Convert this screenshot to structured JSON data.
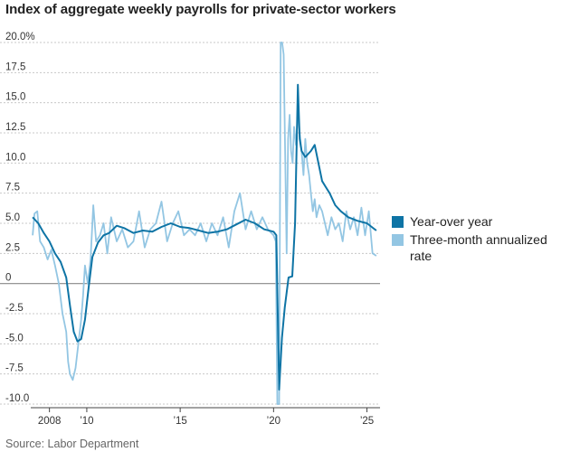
{
  "title": "Index of aggregate weekly payrolls for private-sector workers",
  "source": "Source: Labor Department",
  "colors": {
    "yoy": "#0e74a5",
    "three_month": "#93c6e3",
    "grid": "#c8c8c8",
    "zero": "#888888"
  },
  "chart_data": {
    "type": "line",
    "title": "Index of aggregate weekly payrolls for private-sector workers",
    "xlabel": "",
    "ylabel": "",
    "ylim": [
      -10,
      20
    ],
    "xlim": [
      2007.0,
      2025.7
    ],
    "yticks": [
      20,
      17.5,
      15,
      12.5,
      10,
      7.5,
      5,
      2.5,
      0,
      -2.5,
      -5,
      -7.5,
      -10
    ],
    "ytick_labels": [
      "20.0%",
      "17.5",
      "15.0",
      "12.5",
      "10.0",
      "7.5",
      "5.0",
      "2.5",
      "0",
      "-2.5",
      "-5.0",
      "-7.5",
      "-10.0"
    ],
    "xticks": [
      2008,
      2010,
      2015,
      2020,
      2025
    ],
    "xtick_labels": [
      "2008",
      "’10",
      "’15",
      "’20",
      "’25"
    ],
    "grid": "horizontal dashed",
    "legend_position": "right",
    "series": [
      {
        "name": "Year-over year",
        "color": "#0e74a5",
        "x": [
          2007.1,
          2007.4,
          2007.7,
          2008.0,
          2008.3,
          2008.6,
          2008.9,
          2009.1,
          2009.3,
          2009.5,
          2009.7,
          2009.9,
          2010.1,
          2010.3,
          2010.6,
          2010.9,
          2011.2,
          2011.6,
          2012.0,
          2012.5,
          2013.0,
          2013.5,
          2014.0,
          2014.5,
          2015.0,
          2015.5,
          2016.0,
          2016.5,
          2017.0,
          2017.5,
          2018.0,
          2018.5,
          2019.0,
          2019.5,
          2020.0,
          2020.15,
          2020.3,
          2020.45,
          2020.6,
          2020.8,
          2021.0,
          2021.15,
          2021.3,
          2021.4,
          2021.5,
          2021.7,
          2022.0,
          2022.2,
          2022.4,
          2022.6,
          2022.8,
          2023.0,
          2023.3,
          2023.6,
          2024.0,
          2024.5,
          2025.0,
          2025.5
        ],
        "values": [
          5.5,
          5.0,
          4.2,
          3.5,
          2.5,
          1.8,
          0.5,
          -1.8,
          -4.0,
          -4.8,
          -4.6,
          -3.0,
          -0.3,
          2.2,
          3.4,
          4.0,
          4.2,
          4.8,
          4.6,
          4.2,
          4.4,
          4.3,
          4.7,
          5.0,
          4.7,
          4.6,
          4.4,
          4.2,
          4.3,
          4.5,
          4.9,
          5.3,
          5.0,
          4.5,
          4.3,
          4.0,
          -8.8,
          -4.5,
          -2.0,
          0.5,
          0.6,
          5.0,
          16.5,
          12.0,
          11.0,
          10.5,
          11.0,
          11.5,
          10.0,
          8.5,
          8.0,
          7.5,
          6.5,
          6.0,
          5.5,
          5.2,
          5.0,
          4.4
        ]
      },
      {
        "name": "Three-month annualized rate",
        "color": "#93c6e3",
        "x": [
          2007.1,
          2007.2,
          2007.35,
          2007.5,
          2007.7,
          2007.9,
          2008.1,
          2008.3,
          2008.5,
          2008.7,
          2008.9,
          2009.0,
          2009.1,
          2009.25,
          2009.4,
          2009.55,
          2009.7,
          2009.8,
          2009.9,
          2010.05,
          2010.2,
          2010.35,
          2010.5,
          2010.7,
          2010.9,
          2011.1,
          2011.3,
          2011.6,
          2011.9,
          2012.2,
          2012.5,
          2012.8,
          2013.1,
          2013.4,
          2013.7,
          2014.0,
          2014.3,
          2014.6,
          2014.9,
          2015.2,
          2015.5,
          2015.8,
          2016.1,
          2016.4,
          2016.7,
          2017.0,
          2017.3,
          2017.6,
          2017.9,
          2018.2,
          2018.5,
          2018.8,
          2019.1,
          2019.4,
          2019.7,
          2020.0,
          2020.12,
          2020.2,
          2020.3,
          2020.38,
          2020.46,
          2020.54,
          2020.62,
          2020.7,
          2020.78,
          2020.86,
          2020.94,
          2021.02,
          2021.1,
          2021.2,
          2021.3,
          2021.4,
          2021.5,
          2021.6,
          2021.7,
          2021.8,
          2021.9,
          2022.0,
          2022.1,
          2022.2,
          2022.3,
          2022.45,
          2022.6,
          2022.75,
          2022.9,
          2023.1,
          2023.3,
          2023.5,
          2023.7,
          2023.9,
          2024.1,
          2024.3,
          2024.5,
          2024.7,
          2024.9,
          2025.1,
          2025.3,
          2025.5
        ],
        "values": [
          4.0,
          5.8,
          6.0,
          3.5,
          3.0,
          2.0,
          2.8,
          1.5,
          0.0,
          -2.5,
          -4.0,
          -6.5,
          -7.5,
          -8.0,
          -7.0,
          -5.0,
          -3.0,
          -1.0,
          1.5,
          0.0,
          2.0,
          6.5,
          3.5,
          4.0,
          5.0,
          2.5,
          5.5,
          3.5,
          4.5,
          3.0,
          3.5,
          6.0,
          3.0,
          4.5,
          5.0,
          6.8,
          3.5,
          5.0,
          6.0,
          4.0,
          4.5,
          4.0,
          5.0,
          3.5,
          5.0,
          4.0,
          5.5,
          3.0,
          6.0,
          7.5,
          4.5,
          6.0,
          4.5,
          5.5,
          4.5,
          4.0,
          3.5,
          -10.0,
          -10.0,
          20.0,
          20.0,
          19.0,
          11.0,
          2.5,
          12.0,
          14.0,
          11.0,
          10.0,
          13.0,
          11.5,
          14.3,
          12.5,
          11.0,
          9.0,
          12.0,
          10.0,
          9.0,
          7.5,
          6.0,
          7.0,
          5.5,
          6.5,
          6.0,
          5.0,
          4.0,
          5.5,
          4.5,
          5.0,
          3.5,
          6.0,
          4.5,
          5.5,
          4.0,
          6.3,
          4.0,
          6.0,
          2.5,
          2.3
        ]
      }
    ]
  }
}
